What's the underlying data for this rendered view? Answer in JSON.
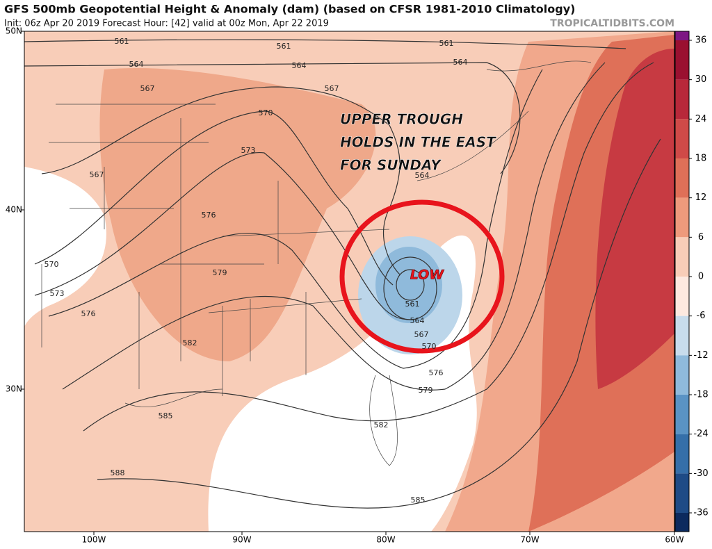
{
  "header": {
    "title": "GFS 500mb Geopotential Height & Anomaly (dam) (based on CFSR 1981-2010 Climatology)",
    "subtitle": "Init: 06z Apr 20 2019   Forecast Hour: [42]   valid at 00z Mon, Apr 22 2019",
    "source": "TROPICALTIDBITS.COM"
  },
  "map": {
    "lat_labels": [
      "50N",
      "40N",
      "30N"
    ],
    "lon_labels": [
      "100W",
      "90W",
      "80W",
      "70W",
      "60W"
    ],
    "contour_labels": [
      561,
      561,
      561,
      564,
      564,
      564,
      567,
      567,
      570,
      573,
      567,
      564,
      576,
      570,
      573,
      579,
      576,
      582,
      561,
      564,
      567,
      570,
      576,
      579,
      582,
      585,
      588,
      585
    ],
    "annotation": [
      "UPPER TROUGH",
      "HOLDS IN THE EAST",
      "FOR SUNDAY"
    ],
    "low_label": "LOW"
  },
  "colorbar": {
    "ticks": [
      36,
      30,
      24,
      18,
      12,
      6,
      0,
      -6,
      -12,
      -18,
      -24,
      -30,
      -36
    ],
    "colors": [
      "#7d1783",
      "#9a1030",
      "#b8283a",
      "#cf4a48",
      "#df7058",
      "#ee9a7c",
      "#f8cdb8",
      "#fde9e0",
      "#c8dcec",
      "#8fbadb",
      "#5a93c4",
      "#356fa9",
      "#1e4b86",
      "#0c2a5e"
    ]
  }
}
